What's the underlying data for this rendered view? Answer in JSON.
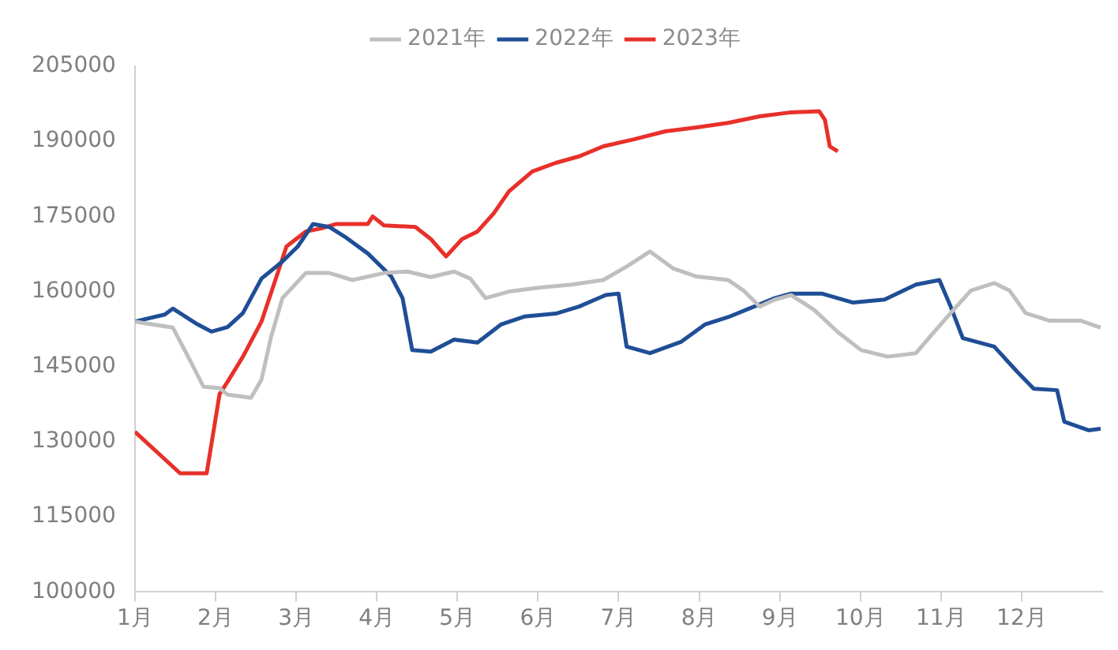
{
  "chart_data": {
    "type": "line",
    "xlim": [
      1,
      13
    ],
    "xticks": [
      {
        "value": 1,
        "label": "1月"
      },
      {
        "value": 2,
        "label": "2月"
      },
      {
        "value": 3,
        "label": "3月"
      },
      {
        "value": 4,
        "label": "4月"
      },
      {
        "value": 5,
        "label": "5月"
      },
      {
        "value": 6,
        "label": "6月"
      },
      {
        "value": 7,
        "label": "7月"
      },
      {
        "value": 8,
        "label": "8月"
      },
      {
        "value": 9,
        "label": "9月"
      },
      {
        "value": 10,
        "label": "10月"
      },
      {
        "value": 11,
        "label": "11月"
      },
      {
        "value": 12,
        "label": "12月"
      }
    ],
    "ylim": [
      100000,
      205000
    ],
    "yticks": [
      100000,
      115000,
      130000,
      145000,
      160000,
      175000,
      190000,
      205000
    ],
    "grid": false,
    "legend": "top",
    "marker": "none",
    "series": [
      {
        "name": "2021年",
        "color": "#bfbfbf",
        "x": [
          1.0,
          1.47,
          1.66,
          1.85,
          2.05,
          2.15,
          2.44,
          2.57,
          2.69,
          2.83,
          3.12,
          3.41,
          3.7,
          4.09,
          4.38,
          4.67,
          4.96,
          5.16,
          5.35,
          5.64,
          6.03,
          6.42,
          6.81,
          7.1,
          7.39,
          7.68,
          7.97,
          8.36,
          8.55,
          8.75,
          8.94,
          9.14,
          9.43,
          9.72,
          10.01,
          10.34,
          10.69,
          10.88,
          11.12,
          11.37,
          11.66,
          11.85,
          12.05,
          12.34,
          12.73,
          12.98
        ],
        "values": [
          154000,
          152800,
          147000,
          141000,
          140700,
          139400,
          138800,
          142400,
          151000,
          158700,
          163700,
          163700,
          162300,
          163700,
          164000,
          162900,
          164000,
          162600,
          158700,
          160000,
          160800,
          161400,
          162300,
          165000,
          168000,
          164600,
          163000,
          162300,
          160200,
          157000,
          158400,
          159300,
          156300,
          151900,
          148300,
          147000,
          147700,
          151300,
          155700,
          160200,
          161700,
          160200,
          155700,
          154200,
          154200,
          152800
        ]
      },
      {
        "name": "2022年",
        "color": "#1f4e96",
        "x": [
          1.0,
          1.37,
          1.47,
          1.76,
          1.95,
          2.15,
          2.34,
          2.57,
          2.83,
          3.02,
          3.21,
          3.41,
          3.6,
          3.89,
          4.18,
          4.32,
          4.44,
          4.67,
          4.96,
          5.25,
          5.54,
          5.83,
          6.22,
          6.51,
          6.84,
          7.0,
          7.1,
          7.39,
          7.78,
          8.07,
          8.36,
          8.94,
          9.14,
          9.52,
          9.91,
          10.3,
          10.69,
          10.98,
          11.12,
          11.27,
          11.66,
          11.95,
          12.15,
          12.44,
          12.53,
          12.83,
          12.98
        ],
        "values": [
          154000,
          155400,
          156600,
          153600,
          152000,
          152900,
          155700,
          162600,
          166000,
          169000,
          173500,
          172900,
          171000,
          167600,
          163000,
          158700,
          148300,
          148000,
          150400,
          149800,
          153400,
          155000,
          155600,
          157000,
          159300,
          159600,
          149000,
          147700,
          150000,
          153400,
          154900,
          158700,
          159600,
          159600,
          157800,
          158400,
          161400,
          162300,
          157000,
          150700,
          149000,
          143900,
          140600,
          140300,
          134000,
          132300,
          132600
        ]
      },
      {
        "name": "2023年",
        "color": "#e8302a",
        "x": [
          1.0,
          1.56,
          1.89,
          2.05,
          2.15,
          2.34,
          2.57,
          2.73,
          2.88,
          3.12,
          3.31,
          3.5,
          3.89,
          3.95,
          4.09,
          4.48,
          4.67,
          4.86,
          5.06,
          5.25,
          5.45,
          5.64,
          5.93,
          6.22,
          6.51,
          6.81,
          7.19,
          7.58,
          7.97,
          8.36,
          8.75,
          9.14,
          9.49,
          9.56,
          9.62,
          9.72
        ],
        "values": [
          132000,
          123700,
          123700,
          139500,
          142000,
          147000,
          154000,
          161700,
          169000,
          172000,
          172600,
          173500,
          173500,
          175000,
          173200,
          172900,
          170500,
          167000,
          170500,
          172000,
          175600,
          180000,
          184000,
          185700,
          187000,
          189000,
          190400,
          192000,
          192800,
          193700,
          195000,
          195800,
          196000,
          194300,
          189000,
          188000
        ]
      }
    ]
  }
}
